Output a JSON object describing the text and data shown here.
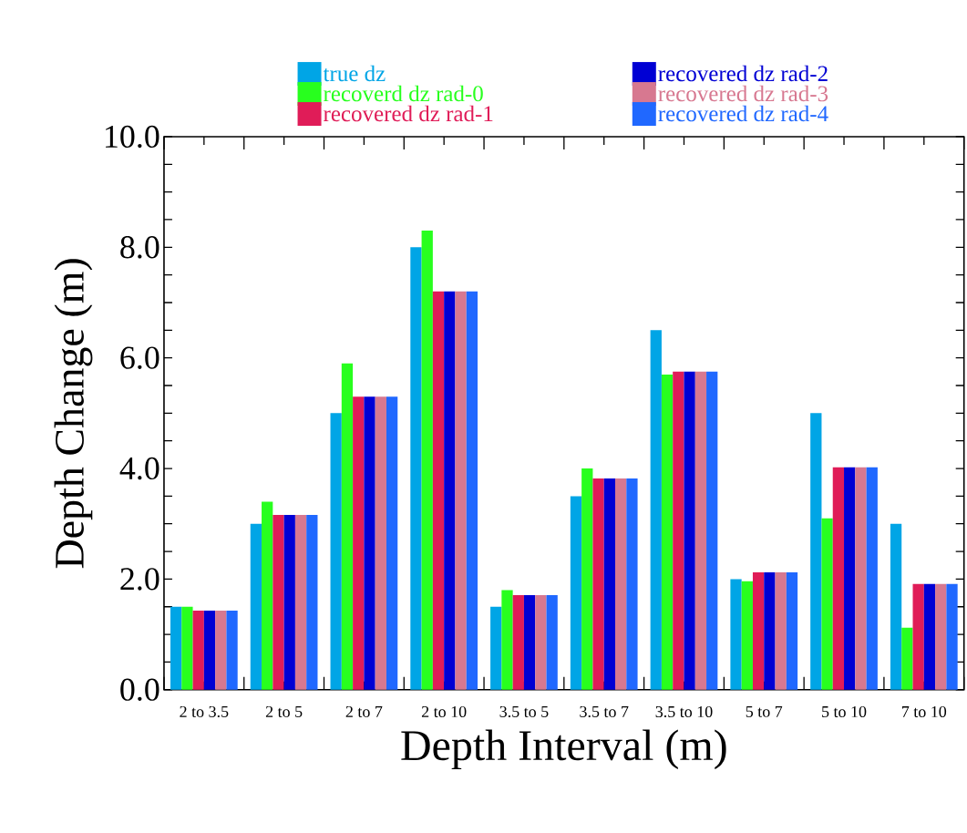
{
  "chart_data": {
    "type": "bar",
    "xlabel": "Depth Interval (m)",
    "ylabel": "Depth Change (m)",
    "categories": [
      "2 to 3.5",
      "2 to 5",
      "2 to 7",
      "2 to 10",
      "3.5 to 5",
      "3.5 to 7",
      "3.5 to 10",
      "5 to 7",
      "5 to 10",
      "7 to 10"
    ],
    "series": [
      {
        "name": "true dz",
        "color": "#00a5e6",
        "values": [
          1.5,
          3.0,
          5.0,
          8.0,
          1.5,
          3.5,
          6.5,
          2.0,
          5.0,
          3.0
        ]
      },
      {
        "name": "recoverd dz rad-0",
        "color": "#28ff1e",
        "values": [
          1.5,
          3.4,
          5.9,
          8.3,
          1.8,
          4.0,
          5.7,
          1.96,
          3.1,
          1.12
        ]
      },
      {
        "name": "recovered dz rad-1",
        "color": "#e01c58",
        "values": [
          1.43,
          3.16,
          5.3,
          7.2,
          1.71,
          3.82,
          5.75,
          2.12,
          4.02,
          1.91
        ]
      },
      {
        "name": "recovered dz rad-2",
        "color": "#0000d4",
        "values": [
          1.43,
          3.16,
          5.3,
          7.2,
          1.71,
          3.82,
          5.75,
          2.12,
          4.02,
          1.91
        ]
      },
      {
        "name": "recovered dz rad-3",
        "color": "#d77890",
        "values": [
          1.43,
          3.16,
          5.3,
          7.2,
          1.71,
          3.82,
          5.75,
          2.12,
          4.02,
          1.91
        ]
      },
      {
        "name": "recovered dz rad-4",
        "color": "#2068ff",
        "values": [
          1.43,
          3.16,
          5.3,
          7.2,
          1.71,
          3.82,
          5.75,
          2.12,
          4.02,
          1.91
        ]
      }
    ],
    "ylim": [
      0,
      10
    ],
    "yticks": [
      {
        "value": 0,
        "label": "0.0"
      },
      {
        "value": 0.5,
        "label": null
      },
      {
        "value": 1,
        "label": null
      },
      {
        "value": 1.5,
        "label": null
      },
      {
        "value": 2,
        "label": "2.0"
      },
      {
        "value": 2.5,
        "label": null
      },
      {
        "value": 3,
        "label": null
      },
      {
        "value": 3.5,
        "label": null
      },
      {
        "value": 4,
        "label": "4.0"
      },
      {
        "value": 4.5,
        "label": null
      },
      {
        "value": 5,
        "label": null
      },
      {
        "value": 5.5,
        "label": null
      },
      {
        "value": 6,
        "label": "6.0"
      },
      {
        "value": 6.5,
        "label": null
      },
      {
        "value": 7,
        "label": null
      },
      {
        "value": 7.5,
        "label": null
      },
      {
        "value": 8,
        "label": "8.0"
      },
      {
        "value": 8.5,
        "label": null
      },
      {
        "value": 9,
        "label": null
      },
      {
        "value": 9.5,
        "label": null
      },
      {
        "value": 10,
        "label": "10.0"
      }
    ],
    "legend": "top",
    "grid": false
  }
}
